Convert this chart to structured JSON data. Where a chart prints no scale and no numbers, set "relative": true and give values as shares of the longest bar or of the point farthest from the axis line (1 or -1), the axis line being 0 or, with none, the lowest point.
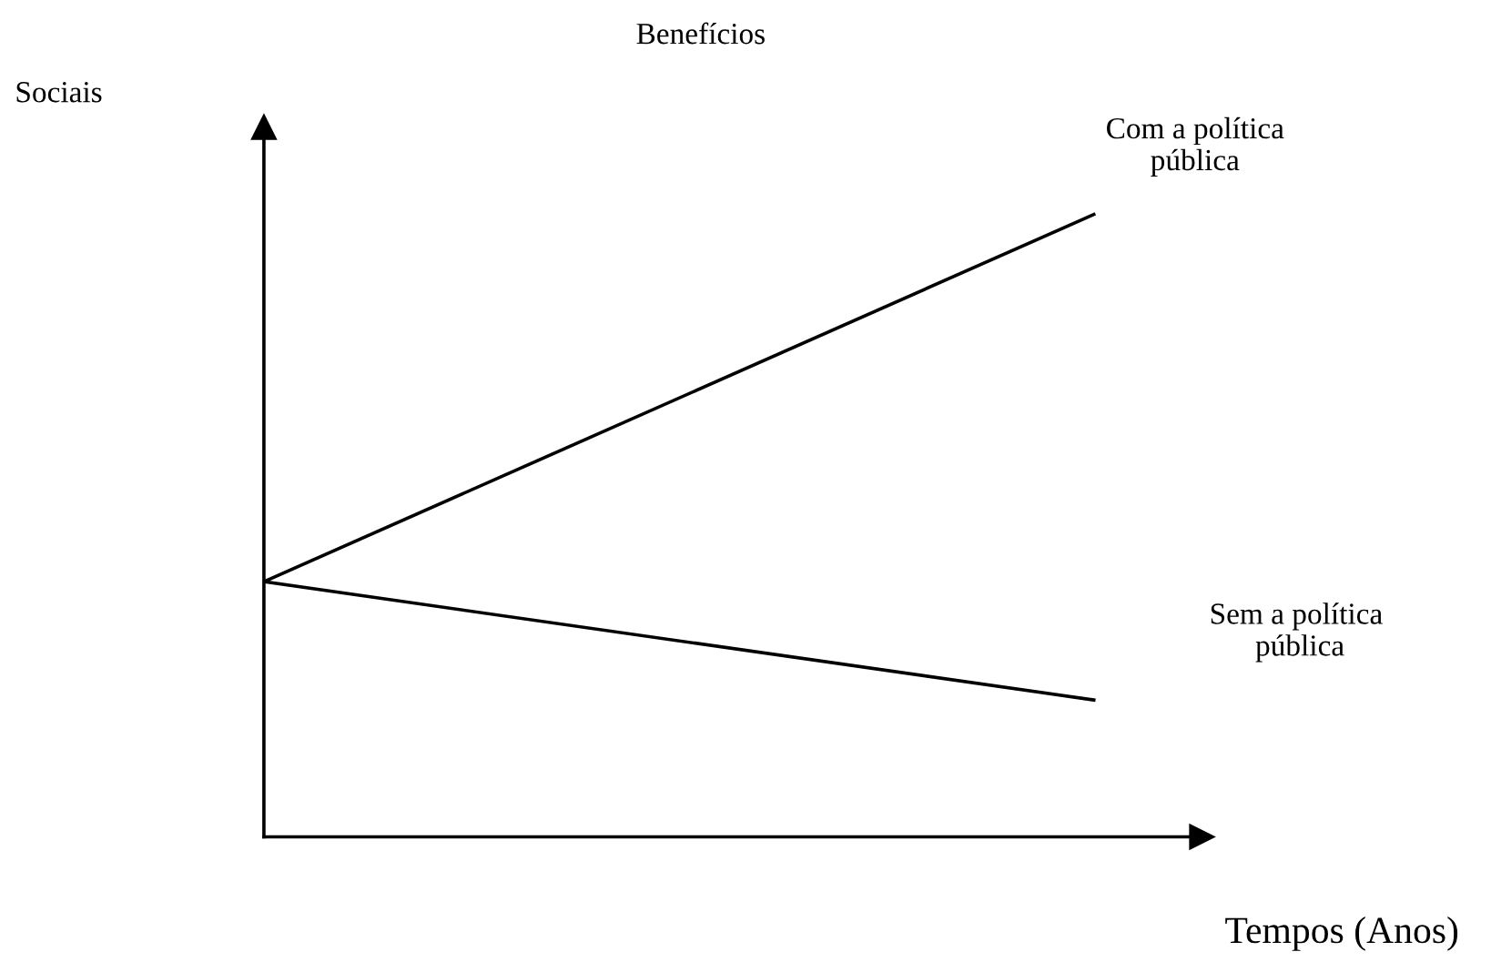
{
  "chart_data": {
    "type": "line",
    "title": "Benefícios",
    "ylabel": "Sociais",
    "xlabel": "Tempos (Anos)",
    "relative": true,
    "categories": [
      null,
      null
    ],
    "series": [
      {
        "name": "Com a política\npública",
        "color": "#000000",
        "values": [
          0.41,
          1
        ]
      },
      {
        "name": "Sem a política\n pública",
        "color": "#000000",
        "values": [
          0.41,
          0.22
        ]
      }
    ],
    "grid": false,
    "legend": false,
    "marker": "none",
    "line_style": "solid"
  }
}
